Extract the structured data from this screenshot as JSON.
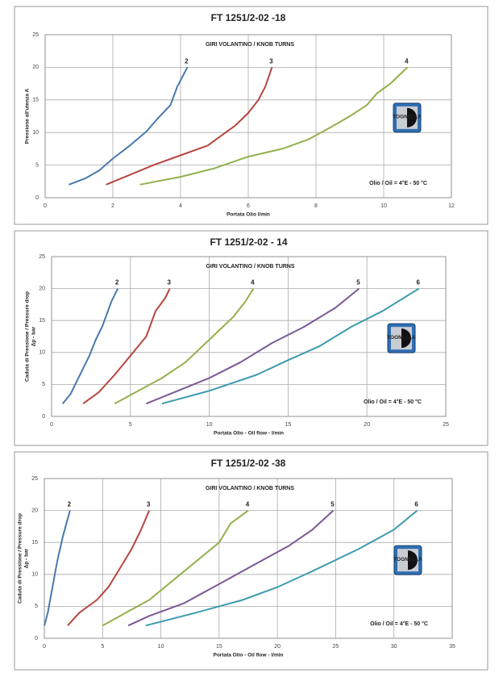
{
  "chart_data": [
    {
      "type": "line",
      "title": "FT 1251/2-02 -18",
      "xlabel": "Portata Olio l/min",
      "ylabel": [
        "Pressione all'utenza A"
      ],
      "annotations": [
        "GIRI VOLANTINO / KNOB TURNS",
        "Olio / Oil = 4°E - 50 °C"
      ],
      "logo": "TOGNELLA",
      "xlim": [
        0,
        12
      ],
      "xticks": [
        0,
        2,
        4,
        6,
        8,
        10,
        12
      ],
      "ylim": [
        0,
        25
      ],
      "yticks": [
        0,
        5,
        10,
        15,
        20,
        25
      ],
      "grid": true,
      "series": [
        {
          "name": "2",
          "color": "#4a78ad",
          "x": [
            0.7,
            1.2,
            1.6,
            2,
            2.5,
            3,
            3.3,
            3.7,
            3.9,
            4.2
          ],
          "values": [
            2,
            3,
            4.2,
            6,
            8,
            10.2,
            12,
            14.2,
            17,
            20
          ]
        },
        {
          "name": "3",
          "color": "#b5463f",
          "x": [
            1.8,
            2.5,
            3.2,
            4,
            4.8,
            5.2,
            5.6,
            6,
            6.3,
            6.5,
            6.7
          ],
          "values": [
            2,
            3.5,
            5,
            6.5,
            8,
            9.5,
            11,
            13,
            15,
            17,
            20
          ]
        },
        {
          "name": "4",
          "color": "#93b04c",
          "x": [
            2.8,
            4,
            5,
            6,
            7,
            7.8,
            8.5,
            9,
            9.5,
            9.8,
            10.2,
            10.7
          ],
          "values": [
            2,
            3.2,
            4.5,
            6.3,
            7.5,
            9,
            11,
            12.5,
            14.2,
            16,
            17.5,
            20
          ]
        }
      ]
    },
    {
      "type": "line",
      "title": "FT 1251/2-02 - 14",
      "xlabel": "Portata Olio - Oil flow -  l/min",
      "ylabel": [
        "Caduta di Pressione / Pressure drop",
        "Δp - bar"
      ],
      "annotations": [
        "GIRI VOLANTINO / KNOB TURNS",
        "Olio / Oil = 4°E - 50 °C"
      ],
      "logo": "TOGNELLA",
      "xlim": [
        0,
        25
      ],
      "xticks": [
        0,
        5,
        10,
        15,
        20,
        25
      ],
      "ylim": [
        0,
        25
      ],
      "yticks": [
        0,
        5,
        10,
        15,
        20,
        25
      ],
      "grid": true,
      "series": [
        {
          "name": "2",
          "color": "#4a78ad",
          "x": [
            0.7,
            1.2,
            1.6,
            2,
            2.4,
            2.8,
            3.2,
            3.5,
            3.8,
            4.2
          ],
          "values": [
            2,
            3.5,
            5.5,
            7.5,
            9.5,
            12,
            14,
            16,
            18,
            20
          ]
        },
        {
          "name": "3",
          "color": "#b5463f",
          "x": [
            2,
            3,
            4,
            5,
            6,
            6.6,
            7.2,
            7.5
          ],
          "values": [
            2,
            3.8,
            6.5,
            9.5,
            12.5,
            16.5,
            18.5,
            20
          ]
        },
        {
          "name": "4",
          "color": "#93b04c",
          "x": [
            4,
            5.5,
            7,
            8.5,
            10,
            11.5,
            12.3,
            12.8
          ],
          "values": [
            2,
            4,
            6,
            8.5,
            12,
            15.5,
            18,
            20
          ]
        },
        {
          "name": "5",
          "color": "#7a5894",
          "x": [
            6,
            8,
            10,
            12,
            14,
            16,
            18,
            19.5
          ],
          "values": [
            2,
            4,
            6,
            8.5,
            11.5,
            14,
            17,
            20
          ]
        },
        {
          "name": "6",
          "color": "#3d9bb0",
          "x": [
            7,
            10,
            13,
            15,
            17,
            19,
            21,
            23.3
          ],
          "values": [
            2,
            4,
            6.5,
            8.8,
            11,
            14,
            16.5,
            20
          ]
        }
      ]
    },
    {
      "type": "line",
      "title": "FT 1251/2-02 -38",
      "xlabel": "Portata Olio - Oil flow -  l/min",
      "ylabel": [
        "Caduta di Pressione / Pressure drop",
        "Δp - bar"
      ],
      "annotations": [
        "GIRI VOLANTINO / KNOB TURNS",
        "Olio / Oil = 4°E - 50 °C"
      ],
      "logo": "TOGNELLA",
      "xlim": [
        0,
        35
      ],
      "xticks": [
        0,
        5,
        10,
        15,
        20,
        25,
        30,
        35
      ],
      "ylim": [
        0,
        25
      ],
      "yticks": [
        0,
        5,
        10,
        15,
        20,
        25
      ],
      "grid": true,
      "series": [
        {
          "name": "2",
          "color": "#4a78ad",
          "x": [
            0,
            0.3,
            0.7,
            1.1,
            1.6,
            2.2
          ],
          "values": [
            2,
            4,
            8,
            12,
            16,
            20
          ]
        },
        {
          "name": "3",
          "color": "#b5463f",
          "x": [
            2,
            3,
            4.5,
            5.5,
            6.5,
            7.5,
            8.3,
            9
          ],
          "values": [
            2,
            4,
            6,
            8,
            11,
            14,
            17,
            20
          ]
        },
        {
          "name": "4",
          "color": "#93b04c",
          "x": [
            5,
            7,
            9,
            11,
            13,
            15,
            16,
            17.5
          ],
          "values": [
            2,
            4,
            6,
            9,
            12,
            15,
            18,
            20
          ]
        },
        {
          "name": "5",
          "color": "#7a5894",
          "x": [
            7.2,
            9,
            12,
            15,
            18,
            21,
            23,
            24.8
          ],
          "values": [
            2,
            3.5,
            5.5,
            8.5,
            11.5,
            14.5,
            17,
            20
          ]
        },
        {
          "name": "6",
          "color": "#3d9bb0",
          "x": [
            8.7,
            13,
            17,
            20,
            23,
            27,
            30,
            32
          ],
          "values": [
            2,
            4,
            6,
            8,
            10.5,
            14,
            17,
            20
          ]
        }
      ]
    }
  ]
}
